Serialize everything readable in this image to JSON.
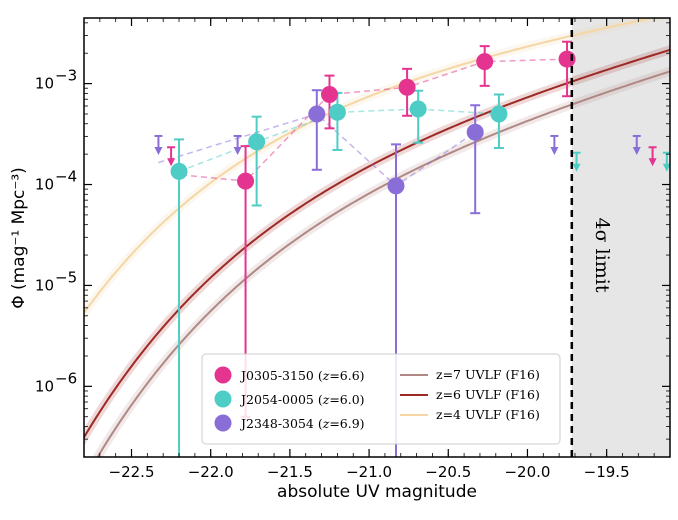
{
  "chart_data": {
    "type": "scatter",
    "xlabel": "absolute UV magnitude",
    "ylabel": "Φ (mag⁻¹ Mpc⁻³)",
    "xlim": [
      -22.8,
      -19.1
    ],
    "ylim_log10": [
      -6.7,
      -2.35
    ],
    "y_scale": "log",
    "xticks": [
      -22.5,
      -22.0,
      -21.5,
      -21.0,
      -20.5,
      -20.0,
      -19.5
    ],
    "xtick_labels": [
      "−22.5",
      "−22.0",
      "−21.5",
      "−21.0",
      "−20.5",
      "−20.0",
      "−19.5"
    ],
    "yticks_log10": [
      -6,
      -5,
      -4,
      -3
    ],
    "ytick_labels": [
      {
        "base": "10",
        "exp": "−6"
      },
      {
        "base": "10",
        "exp": "−5"
      },
      {
        "base": "10",
        "exp": "−4"
      },
      {
        "base": "10",
        "exp": "−3"
      }
    ],
    "limit": {
      "x": -19.72,
      "label": "4σ limit",
      "shade_to": -19.1
    },
    "series": [
      {
        "name": "J0305-3150 (z=6.6)",
        "color": "#e4348f",
        "marker": "circle",
        "points": [
          {
            "x": -21.78,
            "y": 0.000108,
            "ylo": 5e-07,
            "yhi": 0.00024
          },
          {
            "x": -21.25,
            "y": 0.00078,
            "ylo": 0.00036,
            "yhi": 0.0012
          },
          {
            "x": -20.76,
            "y": 0.00092,
            "ylo": 0.00048,
            "yhi": 0.0014
          },
          {
            "x": -20.27,
            "y": 0.00165,
            "ylo": 0.00095,
            "yhi": 0.00235
          },
          {
            "x": -19.75,
            "y": 0.00175,
            "ylo": 0.00075,
            "yhi": 0.0026
          }
        ],
        "upper_limits": [
          {
            "x": -22.25,
            "y": 0.00017
          },
          {
            "x": -19.21,
            "y": 0.00017
          }
        ]
      },
      {
        "name": "J2054-0005 (z=6.0)",
        "color": "#4ecdc6",
        "marker": "circle",
        "points": [
          {
            "x": -22.2,
            "y": 0.000135,
            "ylo": 1e-07,
            "yhi": 0.00028
          },
          {
            "x": -21.71,
            "y": 0.000265,
            "ylo": 6.2e-05,
            "yhi": 0.00047
          },
          {
            "x": -21.2,
            "y": 0.00052,
            "ylo": 0.00022,
            "yhi": 0.00081
          },
          {
            "x": -20.69,
            "y": 0.00056,
            "ylo": 0.00026,
            "yhi": 0.00085
          },
          {
            "x": -20.18,
            "y": 0.0005,
            "ylo": 0.00023,
            "yhi": 0.00078
          }
        ],
        "upper_limits": [
          {
            "x": -19.69,
            "y": 0.00015
          },
          {
            "x": -19.12,
            "y": 0.00015
          }
        ]
      },
      {
        "name": "J2348-3054 (z=6.9)",
        "color": "#8a6ed8",
        "marker": "circle",
        "points": [
          {
            "x": -21.33,
            "y": 0.0005,
            "ylo": 0.00014,
            "yhi": 0.00086
          },
          {
            "x": -20.83,
            "y": 9.7e-05,
            "ylo": 1e-07,
            "yhi": 0.00025
          },
          {
            "x": -20.33,
            "y": 0.00033,
            "ylo": 5.2e-05,
            "yhi": 0.00061
          }
        ],
        "upper_limits": [
          {
            "x": -22.33,
            "y": 0.00022
          },
          {
            "x": -21.83,
            "y": 0.00022
          },
          {
            "x": -19.83,
            "y": 0.00022
          },
          {
            "x": -19.31,
            "y": 0.00022
          }
        ]
      }
    ],
    "uvlf_curves": [
      {
        "name": "z=7 UVLF (F16)",
        "color": "#b08886",
        "phi_star": 0.00031,
        "m_star": -20.87,
        "alpha": -2.06
      },
      {
        "name": "z=6 UVLF (F16)",
        "color": "#9e2a26",
        "phi_star": 0.0005,
        "m_star": -20.94,
        "alpha": -2.02
      },
      {
        "name": "z=4 UVLF (F16)",
        "color": "#f5d6a4",
        "phi_star": 0.0019,
        "m_star": -21.1,
        "alpha": -1.64
      }
    ],
    "legend_placement": "bottom-center",
    "legend_left": [
      {
        "id": "J0305-3150",
        "z": "6.6"
      },
      {
        "id": "J2054-0005",
        "z": "6.0"
      },
      {
        "id": "J2348-3054",
        "z": "6.9"
      }
    ],
    "legend_right": [
      "z=7 UVLF (F16)",
      "z=6 UVLF (F16)",
      "z=4 UVLF (F16)"
    ]
  }
}
